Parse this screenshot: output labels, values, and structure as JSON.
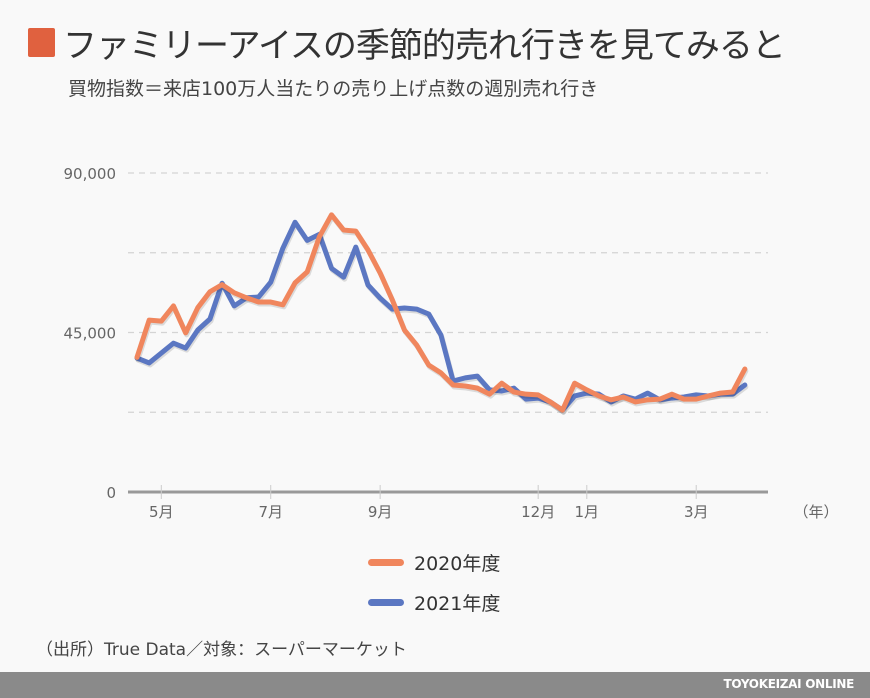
{
  "header": {
    "title": "ファミリーアイスの季節的売れ行きを見てみると",
    "subtitle": "買物指数＝来店100万人当たりの売り上げ点数の週別売れ行き",
    "accent_color": "#e0613f"
  },
  "chart_data": {
    "type": "line",
    "title": "ファミリーアイスの季節的売れ行きを見てみると",
    "subtitle": "買物指数＝来店100万人当たりの売り上げ点数の週別売れ行き",
    "xlabel": "（年）",
    "ylabel": "",
    "ylim": [
      0,
      90000
    ],
    "yticks": [
      {
        "value": 0,
        "label": "0"
      },
      {
        "value": 45000,
        "label": "45,000"
      },
      {
        "value": 90000,
        "label": "90,000"
      }
    ],
    "gridlines": [
      22500,
      45000,
      67500,
      90000
    ],
    "grid": true,
    "x_unit": "week",
    "xlim": [
      0,
      51
    ],
    "xticks": [
      {
        "week": 2,
        "label": "5月"
      },
      {
        "week": 11,
        "label": "7月"
      },
      {
        "week": 20,
        "label": "9月"
      },
      {
        "week": 33,
        "label": "12月"
      },
      {
        "week": 37,
        "label": "1月"
      },
      {
        "week": 46,
        "label": "3月"
      }
    ],
    "legend_position": "bottom-center",
    "series": [
      {
        "name": "2020年度",
        "color": "#f0865d",
        "values": [
          38000,
          48500,
          48200,
          52500,
          44900,
          52000,
          56500,
          58500,
          56200,
          54800,
          53600,
          53600,
          52800,
          59000,
          62100,
          72000,
          78200,
          73900,
          73600,
          68300,
          61800,
          54200,
          45700,
          41500,
          35800,
          33600,
          30200,
          29900,
          29300,
          27600,
          30700,
          28200,
          27600,
          27400,
          25400,
          23100,
          30700,
          28800,
          27100,
          26000,
          26800,
          25400,
          26000,
          26200,
          27600,
          26200,
          26200,
          27100,
          27900,
          28200,
          34700
        ]
      },
      {
        "name": "2021年度",
        "color": "#5b77c2",
        "values": [
          37800,
          36400,
          39200,
          42000,
          40600,
          45700,
          48800,
          58900,
          52500,
          54800,
          55000,
          59200,
          68800,
          76100,
          71000,
          72700,
          63100,
          60600,
          69100,
          58400,
          54700,
          51600,
          51900,
          51600,
          50200,
          44300,
          31300,
          32200,
          32700,
          28800,
          28500,
          29300,
          26200,
          26500,
          25400,
          23100,
          27100,
          27900,
          27600,
          25400,
          27100,
          26200,
          27900,
          26000,
          26500,
          26800,
          27400,
          27100,
          27600,
          27600,
          30200
        ]
      }
    ]
  },
  "legend": {
    "items": [
      {
        "label": "2020年度",
        "color": "#f0865d"
      },
      {
        "label": "2021年度",
        "color": "#5b77c2"
      }
    ]
  },
  "source": "（出所）True Data／対象：スーパーマーケット",
  "footer": {
    "brand": "TOYOKEIZAI ONLINE"
  }
}
